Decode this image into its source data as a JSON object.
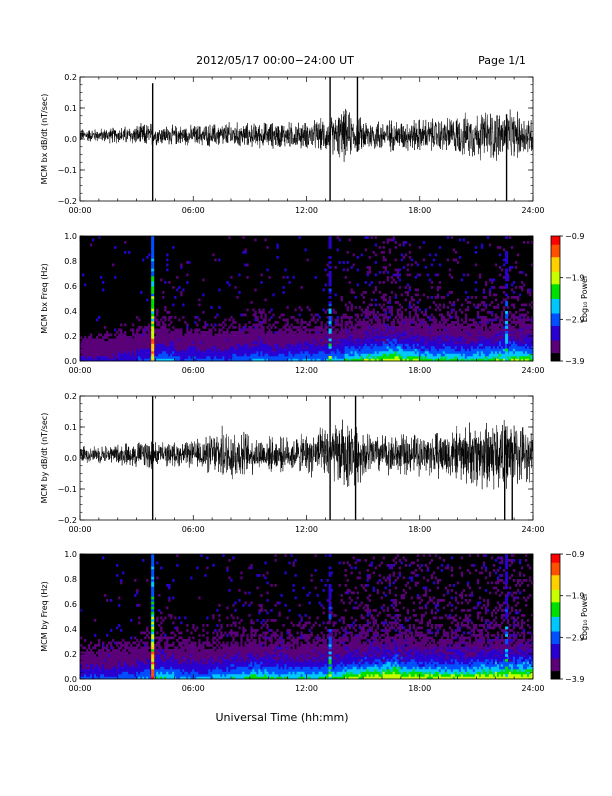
{
  "header": {
    "title": "2012/05/17  00:00−24:00 UT",
    "page": "Page 1/1"
  },
  "footer": {
    "xlabel": "Universal Time (hh:mm)"
  },
  "chart_data": [
    {
      "type": "line",
      "ylabel": "MCM bx dB/dt (nT/sec)",
      "xlim": [
        0,
        24
      ],
      "ylim": [
        -0.2,
        0.2
      ],
      "x_ticks": [
        "00:00",
        "06:00",
        "12:00",
        "18:00",
        "24:00"
      ],
      "y_ticks": [
        "−0.2",
        "−0.1",
        "0.0",
        "0.1",
        "0.2"
      ],
      "series": [
        {
          "x_hours": [
            0,
            1,
            2,
            3,
            3.8,
            4,
            5,
            6,
            7,
            8,
            9,
            10,
            11,
            12,
            13,
            13.5,
            14,
            14.5,
            15,
            16,
            17,
            18,
            19,
            20,
            21,
            22,
            22.5,
            23,
            24
          ],
          "amplitude": [
            0.02,
            0.02,
            0.025,
            0.03,
            0.04,
            0.03,
            0.03,
            0.03,
            0.035,
            0.04,
            0.035,
            0.04,
            0.04,
            0.04,
            0.05,
            0.06,
            0.08,
            0.06,
            0.05,
            0.05,
            0.045,
            0.05,
            0.05,
            0.06,
            0.07,
            0.08,
            0.07,
            0.07,
            0.06
          ],
          "spikes": [
            [
              3.85,
              0.18,
              -0.2
            ],
            [
              13.25,
              0.2,
              -0.2
            ],
            [
              14.7,
              0.2,
              -0.04
            ],
            [
              22.6,
              0.08,
              -0.2
            ]
          ]
        }
      ]
    },
    {
      "type": "heatmap",
      "ylabel": "MCM bx Freq (Hz)",
      "xlim": [
        0,
        24
      ],
      "ylim": [
        0,
        1.0
      ],
      "x_ticks": [
        "00:00",
        "06:00",
        "12:00",
        "18:00",
        "24:00"
      ],
      "y_ticks": [
        "0.0",
        "0.2",
        "0.4",
        "0.6",
        "0.8",
        "1.0"
      ],
      "colorbar": {
        "label": "Log₁₀ Power",
        "ticks": [
          "−0.9",
          "−1.9",
          "−2.9",
          "−3.9"
        ],
        "range": [
          -3.9,
          -0.9
        ]
      },
      "colors": [
        "#000000",
        "#5a0078",
        "#2a00d0",
        "#0050ff",
        "#00c8ff",
        "#00e000",
        "#c8ff00",
        "#ffd000",
        "#ff5000",
        "#ff0000"
      ],
      "activity_by_hour": [
        0.2,
        0.2,
        0.25,
        0.3,
        0.4,
        0.3,
        0.3,
        0.3,
        0.35,
        0.4,
        0.35,
        0.4,
        0.4,
        0.45,
        0.55,
        0.6,
        0.7,
        0.6,
        0.55,
        0.55,
        0.5,
        0.55,
        0.6,
        0.6,
        0.55
      ],
      "broadband_events_hours": [
        3.85,
        13.25,
        22.6
      ]
    },
    {
      "type": "line",
      "ylabel": "MCM by dB/dt (nT/sec)",
      "xlim": [
        0,
        24
      ],
      "ylim": [
        -0.2,
        0.2
      ],
      "x_ticks": [
        "00:00",
        "06:00",
        "12:00",
        "18:00",
        "24:00"
      ],
      "y_ticks": [
        "−0.2",
        "−0.1",
        "0.0",
        "0.1",
        "0.2"
      ],
      "series": [
        {
          "x_hours": [
            0,
            1,
            2,
            3,
            3.8,
            4,
            5,
            6,
            7,
            8,
            9,
            10,
            11,
            12,
            13,
            13.5,
            14,
            14.5,
            15,
            16,
            17,
            18,
            19,
            20,
            21,
            22,
            22.5,
            23,
            24
          ],
          "amplitude": [
            0.025,
            0.025,
            0.03,
            0.04,
            0.05,
            0.035,
            0.035,
            0.04,
            0.06,
            0.09,
            0.06,
            0.05,
            0.05,
            0.06,
            0.08,
            0.09,
            0.11,
            0.09,
            0.07,
            0.06,
            0.06,
            0.06,
            0.07,
            0.08,
            0.1,
            0.12,
            0.1,
            0.1,
            0.07
          ],
          "spikes": [
            [
              3.85,
              0.2,
              -0.2
            ],
            [
              13.25,
              0.2,
              -0.2
            ],
            [
              14.6,
              0.2,
              -0.2
            ],
            [
              22.5,
              0.05,
              -0.2
            ],
            [
              22.9,
              0.05,
              -0.2
            ]
          ]
        }
      ]
    },
    {
      "type": "heatmap",
      "ylabel": "MCM by Freq (Hz)",
      "xlim": [
        0,
        24
      ],
      "ylim": [
        0,
        1.0
      ],
      "x_ticks": [
        "00:00",
        "06:00",
        "12:00",
        "18:00",
        "24:00"
      ],
      "y_ticks": [
        "0.0",
        "0.2",
        "0.4",
        "0.6",
        "0.8",
        "1.0"
      ],
      "colorbar": {
        "label": "Log₁₀ Power",
        "ticks": [
          "−0.9",
          "−1.9",
          "−2.9",
          "−3.9"
        ],
        "range": [
          -3.9,
          -0.9
        ]
      },
      "colors": [
        "#000000",
        "#5a0078",
        "#2a00d0",
        "#0050ff",
        "#00c8ff",
        "#00e000",
        "#c8ff00",
        "#ffd000",
        "#ff5000",
        "#ff0000"
      ],
      "activity_by_hour": [
        0.3,
        0.3,
        0.35,
        0.4,
        0.5,
        0.4,
        0.4,
        0.45,
        0.5,
        0.55,
        0.5,
        0.5,
        0.5,
        0.55,
        0.65,
        0.7,
        0.8,
        0.7,
        0.65,
        0.65,
        0.65,
        0.7,
        0.75,
        0.75,
        0.65
      ],
      "broadband_events_hours": [
        3.85,
        13.25,
        22.6
      ]
    }
  ]
}
